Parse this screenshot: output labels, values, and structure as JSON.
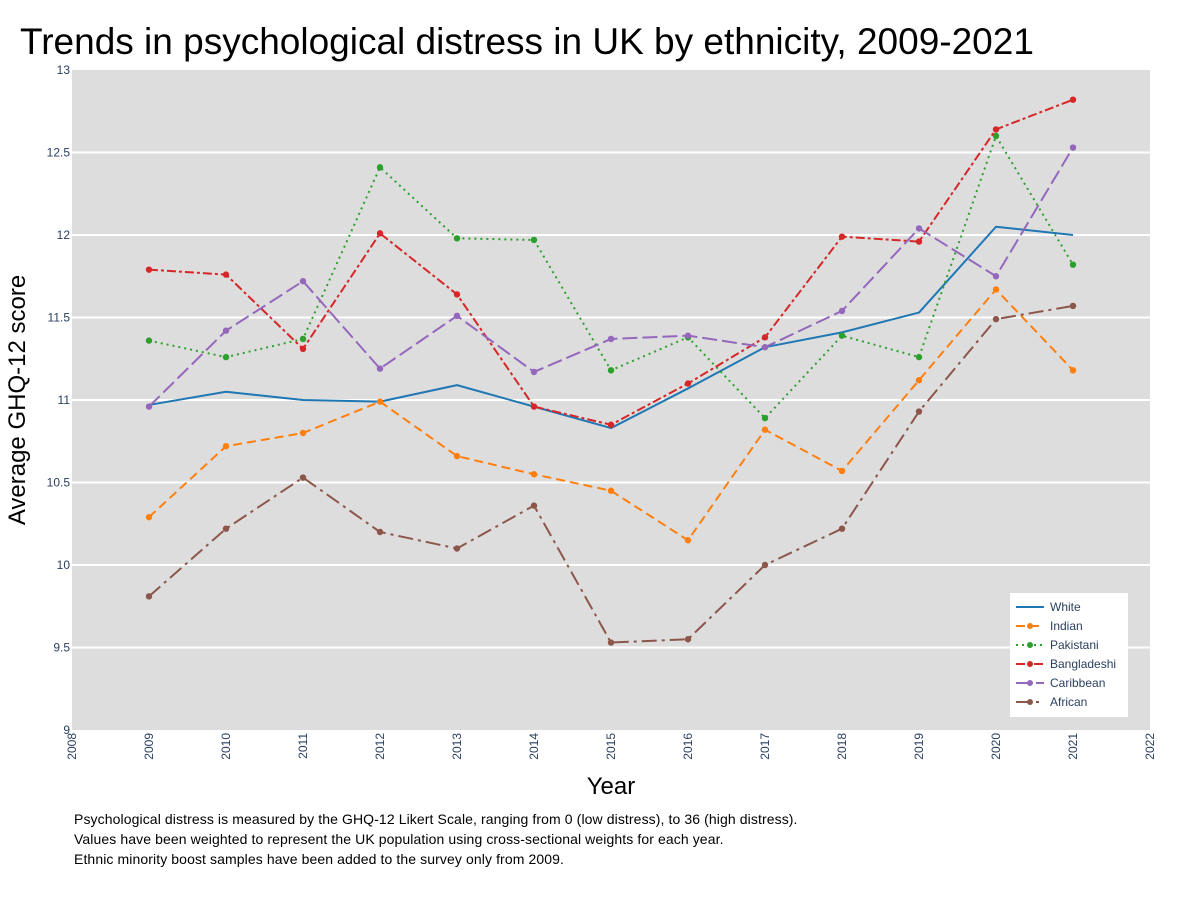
{
  "chart_data": {
    "type": "line",
    "title": "Trends in psychological distress in UK by ethnicity, 2009-2021",
    "xlabel": "Year",
    "ylabel": "Average GHQ-12 score",
    "xlim": [
      2008,
      2022
    ],
    "ylim": [
      9,
      13
    ],
    "x_ticks": [
      "2008",
      "2009",
      "2010",
      "2011",
      "2012",
      "2013",
      "2014",
      "2015",
      "2016",
      "2017",
      "2018",
      "2019",
      "2020",
      "2021",
      "2022"
    ],
    "y_ticks": [
      "9",
      "9.5",
      "10",
      "10.5",
      "11",
      "11.5",
      "12",
      "12.5",
      "13"
    ],
    "grid": true,
    "legend_position": "bottom-right",
    "x": [
      2009,
      2010,
      2011,
      2012,
      2013,
      2014,
      2015,
      2016,
      2017,
      2018,
      2019,
      2020,
      2021
    ],
    "series": [
      {
        "name": "White",
        "color": "#1f77b4",
        "dash": "solid",
        "markers": false,
        "values": [
          10.97,
          11.05,
          11.0,
          10.99,
          11.09,
          10.96,
          10.83,
          11.07,
          11.32,
          11.41,
          11.53,
          12.05,
          12.0
        ]
      },
      {
        "name": "Indian",
        "color": "#ff7f0e",
        "dash": "dash",
        "markers": true,
        "values": [
          10.29,
          10.72,
          10.8,
          10.99,
          10.66,
          10.55,
          10.45,
          10.15,
          10.82,
          10.57,
          11.12,
          11.67,
          11.18
        ]
      },
      {
        "name": "Pakistani",
        "color": "#2ca02c",
        "dash": "dot",
        "markers": true,
        "values": [
          11.36,
          11.26,
          11.37,
          12.41,
          11.98,
          11.97,
          11.18,
          11.38,
          10.89,
          11.39,
          11.26,
          12.6,
          11.82
        ]
      },
      {
        "name": "Bangladeshi",
        "color": "#d62728",
        "dash": "dashdot",
        "markers": true,
        "values": [
          11.79,
          11.76,
          11.31,
          12.01,
          11.64,
          10.96,
          10.85,
          11.1,
          11.38,
          11.99,
          11.96,
          12.64,
          12.82
        ]
      },
      {
        "name": "Caribbean",
        "color": "#9467bd",
        "dash": "longdash",
        "markers": true,
        "values": [
          10.96,
          11.42,
          11.72,
          11.19,
          11.51,
          11.17,
          11.37,
          11.39,
          11.32,
          11.54,
          12.04,
          11.75,
          12.53
        ]
      },
      {
        "name": "African",
        "color": "#8c564b",
        "dash": "longdashdot",
        "markers": true,
        "values": [
          9.81,
          10.22,
          10.53,
          10.2,
          10.1,
          10.36,
          9.53,
          9.55,
          10.0,
          10.22,
          10.93,
          11.49,
          11.57
        ]
      }
    ]
  },
  "notes": [
    "Psychological distress is measured by the GHQ-12 Likert Scale, ranging from 0 (low distress), to 36 (high distress).",
    "Values have been weighted to represent the UK population using cross-sectional weights for each year.",
    "Ethnic minority boost samples have been added to the survey only from 2009."
  ]
}
